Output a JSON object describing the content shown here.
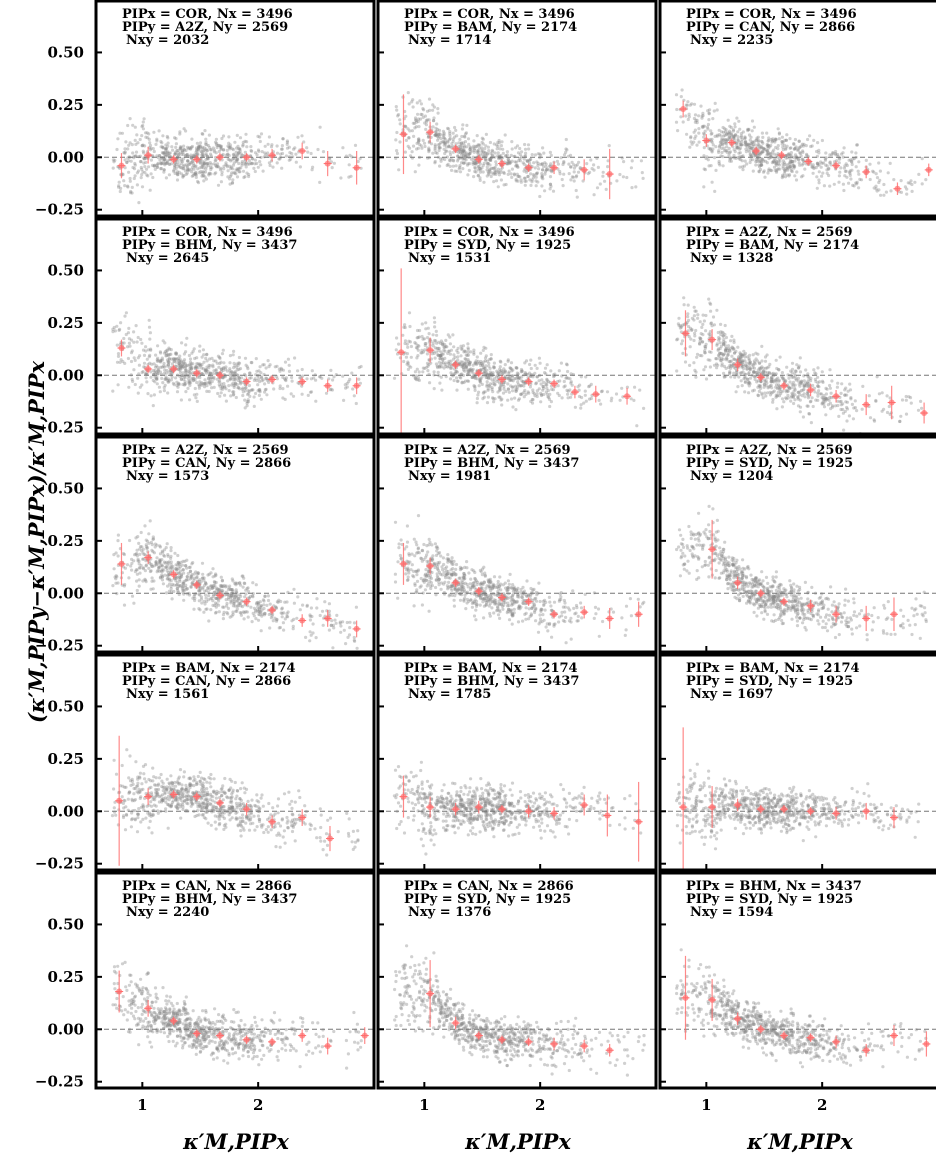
{
  "chart_data": {
    "type": "scatter",
    "layout": "5x3 grid of panels",
    "shared_ylabel": "(κ′M,PIPy−κ′M,PIPx)/κ′M,PIPx",
    "shared_xlabel": "κ′M,PIPx",
    "ylim": [
      -0.28,
      0.75
    ],
    "xlim": [
      0.6,
      3.0
    ],
    "yticks": [
      "0.50",
      "0.25",
      "0.00",
      "−0.25"
    ],
    "ytick_values": [
      0.5,
      0.25,
      0.0,
      -0.25
    ],
    "xticks": [
      "1",
      "2"
    ],
    "xtick_values": [
      1,
      2
    ],
    "reference_line_y": 0.0,
    "colors": {
      "scatter": "#8a8a8a",
      "binned": "#ff6b6b",
      "reference": "#777777",
      "frame": "#000000"
    },
    "panels": [
      {
        "line1": "PIPx = COR, Nx = 3496",
        "line2": "PIPy = A2Z, Ny = 2569",
        "line3": "Nxy = 2032",
        "bins": [
          {
            "x": 0.82,
            "y": -0.04,
            "err": 0.06
          },
          {
            "x": 1.05,
            "y": 0.01,
            "err": 0.04
          },
          {
            "x": 1.27,
            "y": -0.01,
            "err": 0.02
          },
          {
            "x": 1.47,
            "y": -0.01,
            "err": 0.02
          },
          {
            "x": 1.67,
            "y": 0.0,
            "err": 0.02
          },
          {
            "x": 1.9,
            "y": 0.0,
            "err": 0.02
          },
          {
            "x": 2.12,
            "y": 0.01,
            "err": 0.03
          },
          {
            "x": 2.38,
            "y": 0.03,
            "err": 0.04
          },
          {
            "x": 2.6,
            "y": -0.03,
            "err": 0.06
          },
          {
            "x": 2.85,
            "y": -0.05,
            "err": 0.08
          }
        ]
      },
      {
        "line1": "PIPx = COR, Nx = 3496",
        "line2": "PIPy = BAM, Ny = 2174",
        "line3": "Nxy = 1714",
        "bins": [
          {
            "x": 0.82,
            "y": 0.11,
            "err": 0.19
          },
          {
            "x": 1.05,
            "y": 0.12,
            "err": 0.05
          },
          {
            "x": 1.27,
            "y": 0.04,
            "err": 0.02
          },
          {
            "x": 1.47,
            "y": -0.01,
            "err": 0.02
          },
          {
            "x": 1.67,
            "y": -0.03,
            "err": 0.02
          },
          {
            "x": 1.9,
            "y": -0.05,
            "err": 0.02
          },
          {
            "x": 2.12,
            "y": -0.05,
            "err": 0.03
          },
          {
            "x": 2.38,
            "y": -0.06,
            "err": 0.05
          },
          {
            "x": 2.6,
            "y": -0.08,
            "err": 0.12
          }
        ]
      },
      {
        "line1": "PIPx = COR, Nx = 3496",
        "line2": "PIPy = CAN, Ny = 2866",
        "line3": "Nxy = 2235",
        "bins": [
          {
            "x": 0.8,
            "y": 0.23,
            "err": 0.04
          },
          {
            "x": 1.0,
            "y": 0.08,
            "err": 0.03
          },
          {
            "x": 1.22,
            "y": 0.07,
            "err": 0.02
          },
          {
            "x": 1.43,
            "y": 0.03,
            "err": 0.02
          },
          {
            "x": 1.65,
            "y": 0.01,
            "err": 0.02
          },
          {
            "x": 1.88,
            "y": -0.02,
            "err": 0.02
          },
          {
            "x": 2.12,
            "y": -0.04,
            "err": 0.02
          },
          {
            "x": 2.38,
            "y": -0.07,
            "err": 0.03
          },
          {
            "x": 2.65,
            "y": -0.15,
            "err": 0.03
          },
          {
            "x": 2.92,
            "y": -0.06,
            "err": 0.03
          }
        ]
      },
      {
        "line1": "PIPx = COR, Nx = 3496",
        "line2": "PIPy = BHM, Ny = 3437",
        "line3": "Nxy = 2645",
        "bins": [
          {
            "x": 0.82,
            "y": 0.13,
            "err": 0.04
          },
          {
            "x": 1.05,
            "y": 0.03,
            "err": 0.02
          },
          {
            "x": 1.27,
            "y": 0.03,
            "err": 0.02
          },
          {
            "x": 1.47,
            "y": 0.01,
            "err": 0.02
          },
          {
            "x": 1.67,
            "y": 0.0,
            "err": 0.02
          },
          {
            "x": 1.9,
            "y": -0.03,
            "err": 0.02
          },
          {
            "x": 2.12,
            "y": -0.02,
            "err": 0.02
          },
          {
            "x": 2.38,
            "y": -0.03,
            "err": 0.02
          },
          {
            "x": 2.6,
            "y": -0.05,
            "err": 0.03
          },
          {
            "x": 2.85,
            "y": -0.05,
            "err": 0.04
          }
        ]
      },
      {
        "line1": "PIPx = COR, Nx = 3496",
        "line2": "PIPy = SYD, Ny = 1925",
        "line3": "Nxy = 1531",
        "bins": [
          {
            "x": 0.8,
            "y": 0.11,
            "err": 0.4
          },
          {
            "x": 1.05,
            "y": 0.12,
            "err": 0.06
          },
          {
            "x": 1.27,
            "y": 0.05,
            "err": 0.02
          },
          {
            "x": 1.47,
            "y": 0.01,
            "err": 0.02
          },
          {
            "x": 1.67,
            "y": -0.02,
            "err": 0.02
          },
          {
            "x": 1.9,
            "y": -0.03,
            "err": 0.02
          },
          {
            "x": 2.12,
            "y": -0.04,
            "err": 0.02
          },
          {
            "x": 2.3,
            "y": -0.08,
            "err": 0.03
          },
          {
            "x": 2.48,
            "y": -0.09,
            "err": 0.04
          },
          {
            "x": 2.75,
            "y": -0.1,
            "err": 0.04
          }
        ]
      },
      {
        "line1": "PIPx = A2Z, Nx = 2569",
        "line2": "PIPy = BAM, Ny = 2174",
        "line3": "Nxy = 1328",
        "bins": [
          {
            "x": 0.82,
            "y": 0.2,
            "err": 0.11
          },
          {
            "x": 1.05,
            "y": 0.17,
            "err": 0.05
          },
          {
            "x": 1.27,
            "y": 0.05,
            "err": 0.03
          },
          {
            "x": 1.47,
            "y": -0.01,
            "err": 0.02
          },
          {
            "x": 1.67,
            "y": -0.05,
            "err": 0.02
          },
          {
            "x": 1.9,
            "y": -0.07,
            "err": 0.03
          },
          {
            "x": 2.12,
            "y": -0.1,
            "err": 0.03
          },
          {
            "x": 2.38,
            "y": -0.14,
            "err": 0.05
          },
          {
            "x": 2.6,
            "y": -0.13,
            "err": 0.08
          },
          {
            "x": 2.88,
            "y": -0.18,
            "err": 0.05
          }
        ]
      },
      {
        "line1": "PIPx = A2Z, Nx = 2569",
        "line2": "PIPy = CAN, Ny = 2866",
        "line3": "Nxy = 1573",
        "bins": [
          {
            "x": 0.82,
            "y": 0.14,
            "err": 0.1
          },
          {
            "x": 1.05,
            "y": 0.17,
            "err": 0.03
          },
          {
            "x": 1.27,
            "y": 0.09,
            "err": 0.02
          },
          {
            "x": 1.47,
            "y": 0.04,
            "err": 0.02
          },
          {
            "x": 1.67,
            "y": -0.01,
            "err": 0.02
          },
          {
            "x": 1.9,
            "y": -0.04,
            "err": 0.02
          },
          {
            "x": 2.12,
            "y": -0.08,
            "err": 0.02
          },
          {
            "x": 2.38,
            "y": -0.13,
            "err": 0.03
          },
          {
            "x": 2.6,
            "y": -0.12,
            "err": 0.04
          },
          {
            "x": 2.85,
            "y": -0.17,
            "err": 0.04
          }
        ]
      },
      {
        "line1": "PIPx = A2Z, Nx = 2569",
        "line2": "PIPy = BHM, Ny = 3437",
        "line3": "Nxy = 1981",
        "bins": [
          {
            "x": 0.82,
            "y": 0.14,
            "err": 0.1
          },
          {
            "x": 1.05,
            "y": 0.13,
            "err": 0.04
          },
          {
            "x": 1.27,
            "y": 0.05,
            "err": 0.02
          },
          {
            "x": 1.47,
            "y": 0.01,
            "err": 0.02
          },
          {
            "x": 1.67,
            "y": -0.02,
            "err": 0.02
          },
          {
            "x": 1.9,
            "y": -0.04,
            "err": 0.02
          },
          {
            "x": 2.12,
            "y": -0.1,
            "err": 0.02
          },
          {
            "x": 2.38,
            "y": -0.09,
            "err": 0.03
          },
          {
            "x": 2.6,
            "y": -0.12,
            "err": 0.05
          },
          {
            "x": 2.85,
            "y": -0.1,
            "err": 0.06
          }
        ]
      },
      {
        "line1": "PIPx = A2Z, Nx = 2569",
        "line2": "PIPy = SYD, Ny = 1925",
        "line3": "Nxy = 1204",
        "bins": [
          {
            "x": 1.05,
            "y": 0.21,
            "err": 0.14
          },
          {
            "x": 1.27,
            "y": 0.05,
            "err": 0.03
          },
          {
            "x": 1.47,
            "y": 0.0,
            "err": 0.02
          },
          {
            "x": 1.67,
            "y": -0.04,
            "err": 0.02
          },
          {
            "x": 1.9,
            "y": -0.06,
            "err": 0.03
          },
          {
            "x": 2.12,
            "y": -0.1,
            "err": 0.04
          },
          {
            "x": 2.38,
            "y": -0.12,
            "err": 0.06
          },
          {
            "x": 2.62,
            "y": -0.1,
            "err": 0.08
          }
        ]
      },
      {
        "line1": "PIPx = BAM, Nx = 2174",
        "line2": "PIPy = CAN, Ny = 2866",
        "line3": "Nxy = 1561",
        "bins": [
          {
            "x": 0.8,
            "y": 0.05,
            "err": 0.31
          },
          {
            "x": 1.05,
            "y": 0.07,
            "err": 0.04
          },
          {
            "x": 1.27,
            "y": 0.08,
            "err": 0.02
          },
          {
            "x": 1.47,
            "y": 0.07,
            "err": 0.02
          },
          {
            "x": 1.67,
            "y": 0.04,
            "err": 0.02
          },
          {
            "x": 1.9,
            "y": 0.01,
            "err": 0.03
          },
          {
            "x": 2.12,
            "y": -0.05,
            "err": 0.03
          },
          {
            "x": 2.38,
            "y": -0.03,
            "err": 0.04
          },
          {
            "x": 2.62,
            "y": -0.13,
            "err": 0.06
          }
        ]
      },
      {
        "line1": "PIPx = BAM, Nx = 2174",
        "line2": "PIPy = BHM, Ny = 3437",
        "line3": "Nxy = 1785",
        "bins": [
          {
            "x": 0.82,
            "y": 0.07,
            "err": 0.1
          },
          {
            "x": 1.05,
            "y": 0.02,
            "err": 0.05
          },
          {
            "x": 1.27,
            "y": 0.01,
            "err": 0.03
          },
          {
            "x": 1.47,
            "y": 0.02,
            "err": 0.03
          },
          {
            "x": 1.67,
            "y": 0.01,
            "err": 0.02
          },
          {
            "x": 1.9,
            "y": 0.0,
            "err": 0.03
          },
          {
            "x": 2.12,
            "y": -0.01,
            "err": 0.03
          },
          {
            "x": 2.38,
            "y": 0.03,
            "err": 0.05
          },
          {
            "x": 2.58,
            "y": -0.02,
            "err": 0.1
          },
          {
            "x": 2.85,
            "y": -0.05,
            "err": 0.19
          }
        ]
      },
      {
        "line1": "PIPx = BAM, Nx = 2174",
        "line2": "PIPy = SYD, Ny = 1925",
        "line3": "Nxy = 1697",
        "bins": [
          {
            "x": 0.8,
            "y": 0.02,
            "err": 0.38
          },
          {
            "x": 1.05,
            "y": 0.02,
            "err": 0.1
          },
          {
            "x": 1.27,
            "y": 0.03,
            "err": 0.03
          },
          {
            "x": 1.47,
            "y": 0.01,
            "err": 0.02
          },
          {
            "x": 1.67,
            "y": 0.01,
            "err": 0.02
          },
          {
            "x": 1.9,
            "y": 0.0,
            "err": 0.02
          },
          {
            "x": 2.12,
            "y": -0.01,
            "err": 0.03
          },
          {
            "x": 2.38,
            "y": 0.0,
            "err": 0.04
          },
          {
            "x": 2.62,
            "y": -0.03,
            "err": 0.05
          }
        ]
      },
      {
        "line1": "PIPx = CAN, Nx = 2866",
        "line2": "PIPy = BHM, Ny = 3437",
        "line3": "Nxy = 2240",
        "bins": [
          {
            "x": 0.8,
            "y": 0.18,
            "err": 0.1
          },
          {
            "x": 1.05,
            "y": 0.1,
            "err": 0.04
          },
          {
            "x": 1.27,
            "y": 0.04,
            "err": 0.02
          },
          {
            "x": 1.47,
            "y": -0.02,
            "err": 0.02
          },
          {
            "x": 1.67,
            "y": -0.03,
            "err": 0.02
          },
          {
            "x": 1.9,
            "y": -0.05,
            "err": 0.02
          },
          {
            "x": 2.12,
            "y": -0.06,
            "err": 0.02
          },
          {
            "x": 2.38,
            "y": -0.03,
            "err": 0.03
          },
          {
            "x": 2.6,
            "y": -0.08,
            "err": 0.04
          },
          {
            "x": 2.92,
            "y": -0.03,
            "err": 0.04
          }
        ]
      },
      {
        "line1": "PIPx = CAN, Nx = 2866",
        "line2": "PIPy = SYD, Ny = 1925",
        "line3": "Nxy = 1376",
        "bins": [
          {
            "x": 1.05,
            "y": 0.17,
            "err": 0.16
          },
          {
            "x": 1.27,
            "y": 0.03,
            "err": 0.03
          },
          {
            "x": 1.47,
            "y": -0.03,
            "err": 0.02
          },
          {
            "x": 1.67,
            "y": -0.05,
            "err": 0.02
          },
          {
            "x": 1.9,
            "y": -0.06,
            "err": 0.02
          },
          {
            "x": 2.12,
            "y": -0.07,
            "err": 0.03
          },
          {
            "x": 2.38,
            "y": -0.08,
            "err": 0.03
          },
          {
            "x": 2.6,
            "y": -0.1,
            "err": 0.03
          }
        ]
      },
      {
        "line1": "PIPx = BHM, Nx = 3437",
        "line2": "PIPy = SYD, Ny = 1925",
        "line3": "Nxy = 1594",
        "bins": [
          {
            "x": 0.82,
            "y": 0.15,
            "err": 0.2
          },
          {
            "x": 1.05,
            "y": 0.14,
            "err": 0.1
          },
          {
            "x": 1.27,
            "y": 0.05,
            "err": 0.03
          },
          {
            "x": 1.47,
            "y": 0.0,
            "err": 0.02
          },
          {
            "x": 1.67,
            "y": -0.03,
            "err": 0.02
          },
          {
            "x": 1.9,
            "y": -0.04,
            "err": 0.02
          },
          {
            "x": 2.12,
            "y": -0.06,
            "err": 0.03
          },
          {
            "x": 2.38,
            "y": -0.1,
            "err": 0.03
          },
          {
            "x": 2.62,
            "y": -0.03,
            "err": 0.05
          },
          {
            "x": 2.9,
            "y": -0.07,
            "err": 0.06
          }
        ]
      }
    ]
  }
}
